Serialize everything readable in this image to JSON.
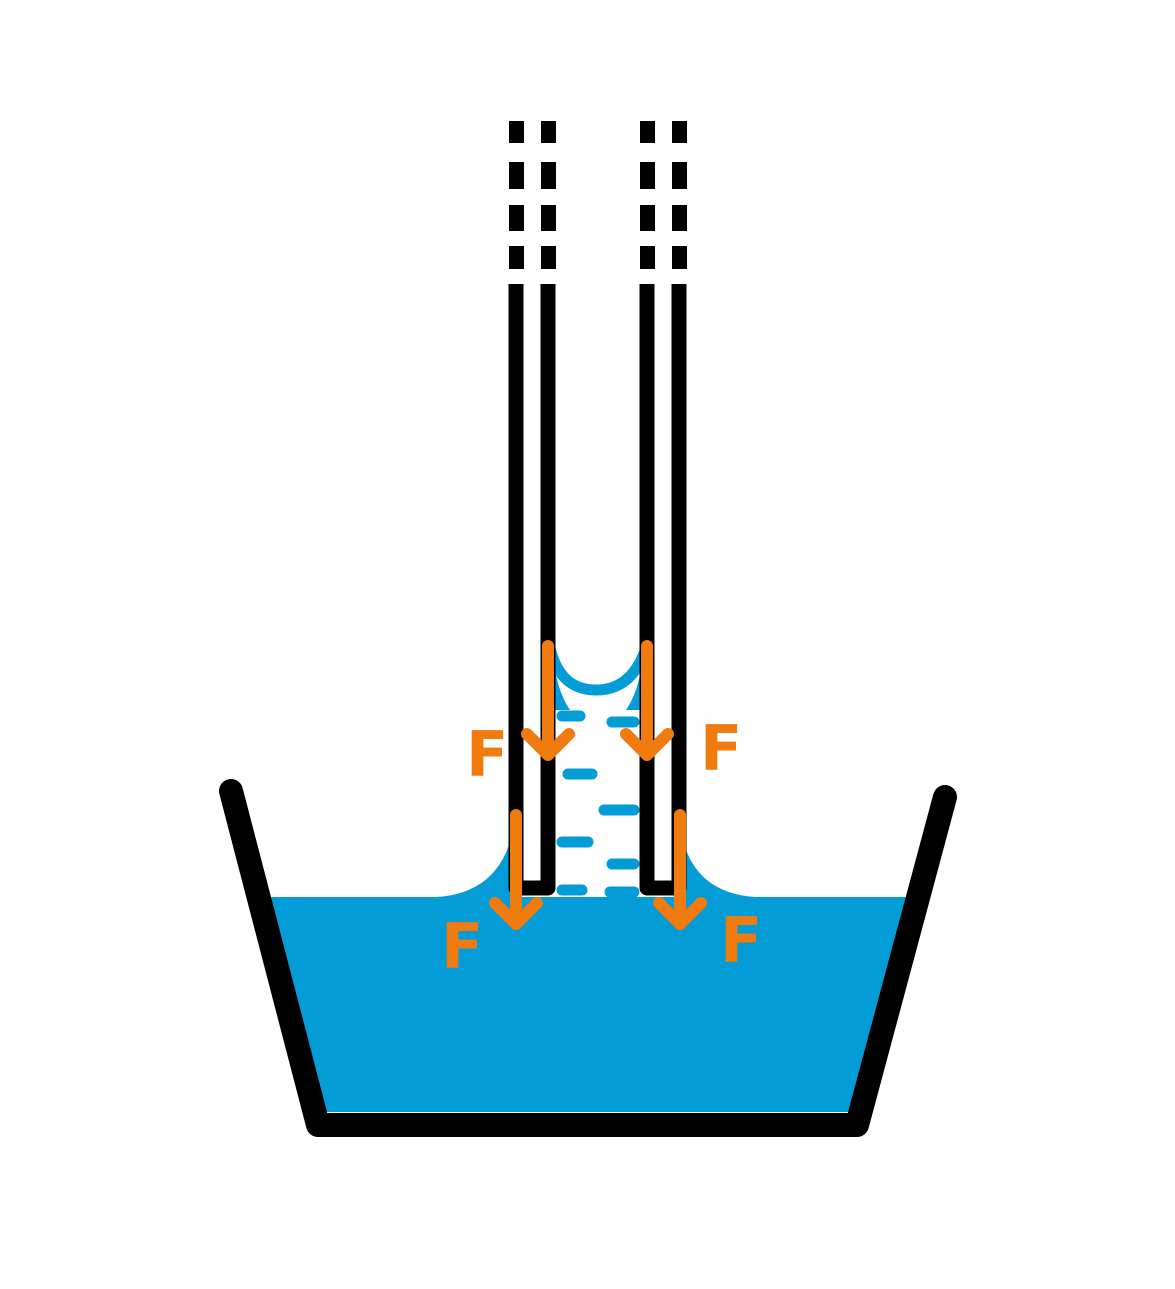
{
  "diagram": {
    "colors": {
      "water": "#039cd6",
      "outline": "#000000",
      "force": "#f07b0f",
      "background": "#ffffff"
    },
    "force_labels": {
      "upper_left": "F",
      "upper_right": "F",
      "lower_left": "F",
      "lower_right": "F"
    }
  }
}
